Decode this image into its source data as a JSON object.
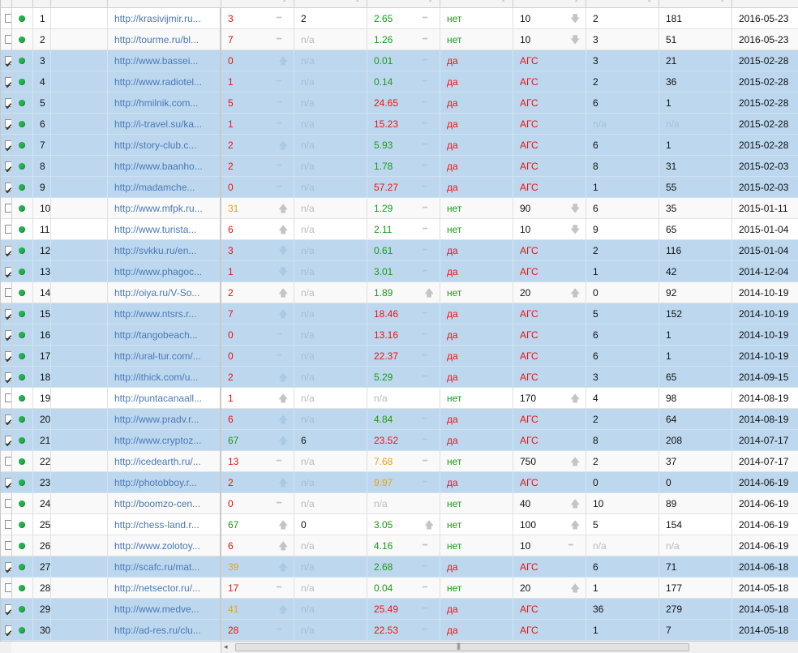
{
  "colors": {
    "selected_row": "#bdd8ee",
    "link": "#4a78b8",
    "red": "#ee1111",
    "green": "#1a9a1a",
    "orange": "#e8a218",
    "status_dot": "#22b14c"
  },
  "scrollbar": {
    "left_arrow": "◂",
    "grip": "|||"
  },
  "rows": [
    {
      "checked": false,
      "num": "1",
      "url": "http://krasivijmir.ru...",
      "c1": "3",
      "c1c": "red",
      "i1": "dash",
      "c2": "2",
      "c2c": "black",
      "c3": "2.65",
      "c3c": "green",
      "i3": "dash",
      "c4": "нет",
      "c4c": "green",
      "c5": "10",
      "c5c": "black",
      "i5": "down",
      "c6": "2",
      "c6c": "black",
      "c7": "181",
      "c7c": "black",
      "date": "2016-05-23"
    },
    {
      "checked": false,
      "num": "2",
      "url": "http://tourme.ru/bl...",
      "c1": "7",
      "c1c": "red",
      "i1": "dash",
      "c2": "n/a",
      "c2c": "muted",
      "c3": "1.26",
      "c3c": "green",
      "i3": "dash",
      "c4": "нет",
      "c4c": "green",
      "c5": "10",
      "c5c": "black",
      "i5": "down",
      "c6": "3",
      "c6c": "black",
      "c7": "51",
      "c7c": "black",
      "date": "2016-05-23"
    },
    {
      "checked": true,
      "num": "3",
      "url": "http://www.bassei...",
      "c1": "0",
      "c1c": "red",
      "i1": "up",
      "c2": "n/a",
      "c2c": "muted",
      "c3": "0.01",
      "c3c": "green",
      "i3": "dash",
      "c4": "да",
      "c4c": "red",
      "c5": "АГС",
      "c5c": "red",
      "i5": "",
      "c6": "3",
      "c6c": "black",
      "c7": "21",
      "c7c": "black",
      "date": "2015-02-28"
    },
    {
      "checked": true,
      "num": "4",
      "url": "http://www.radiotel...",
      "c1": "1",
      "c1c": "red",
      "i1": "dash",
      "c2": "n/a",
      "c2c": "muted",
      "c3": "0.14",
      "c3c": "green",
      "i3": "dash",
      "c4": "да",
      "c4c": "red",
      "c5": "АГС",
      "c5c": "red",
      "i5": "",
      "c6": "2",
      "c6c": "black",
      "c7": "36",
      "c7c": "black",
      "date": "2015-02-28"
    },
    {
      "checked": true,
      "num": "5",
      "url": "http://hmilnik.com...",
      "c1": "5",
      "c1c": "red",
      "i1": "dash",
      "c2": "n/a",
      "c2c": "muted",
      "c3": "24.65",
      "c3c": "red",
      "i3": "dash",
      "c4": "да",
      "c4c": "red",
      "c5": "АГС",
      "c5c": "red",
      "i5": "",
      "c6": "6",
      "c6c": "black",
      "c7": "1",
      "c7c": "black",
      "date": "2015-02-28"
    },
    {
      "checked": true,
      "num": "6",
      "url": "http://i-travel.su/ka...",
      "c1": "1",
      "c1c": "red",
      "i1": "dash",
      "c2": "n/a",
      "c2c": "muted",
      "c3": "15.23",
      "c3c": "red",
      "i3": "dash",
      "c4": "да",
      "c4c": "red",
      "c5": "АГС",
      "c5c": "red",
      "i5": "",
      "c6": "n/a",
      "c6c": "muted",
      "c7": "n/a",
      "c7c": "muted",
      "date": "2015-02-28"
    },
    {
      "checked": true,
      "num": "7",
      "url": "http://story-club.c...",
      "c1": "2",
      "c1c": "red",
      "i1": "up",
      "c2": "n/a",
      "c2c": "muted",
      "c3": "5.93",
      "c3c": "green",
      "i3": "dash",
      "c4": "да",
      "c4c": "red",
      "c5": "АГС",
      "c5c": "red",
      "i5": "",
      "c6": "6",
      "c6c": "black",
      "c7": "1",
      "c7c": "black",
      "date": "2015-02-28"
    },
    {
      "checked": true,
      "num": "8",
      "url": "http://www.baanho...",
      "c1": "2",
      "c1c": "red",
      "i1": "dash",
      "c2": "n/a",
      "c2c": "muted",
      "c3": "1.78",
      "c3c": "green",
      "i3": "dash",
      "c4": "да",
      "c4c": "red",
      "c5": "АГС",
      "c5c": "red",
      "i5": "",
      "c6": "8",
      "c6c": "black",
      "c7": "31",
      "c7c": "black",
      "date": "2015-02-03"
    },
    {
      "checked": true,
      "num": "9",
      "url": "http://madamche...",
      "c1": "0",
      "c1c": "red",
      "i1": "dash",
      "c2": "n/a",
      "c2c": "muted",
      "c3": "57.27",
      "c3c": "red",
      "i3": "dash",
      "c4": "да",
      "c4c": "red",
      "c5": "АГС",
      "c5c": "red",
      "i5": "",
      "c6": "1",
      "c6c": "black",
      "c7": "55",
      "c7c": "black",
      "date": "2015-02-03"
    },
    {
      "checked": false,
      "num": "10",
      "url": "http://www.mfpk.ru...",
      "c1": "31",
      "c1c": "orange",
      "i1": "up",
      "c2": "n/a",
      "c2c": "muted",
      "c3": "1.29",
      "c3c": "green",
      "i3": "dash",
      "c4": "нет",
      "c4c": "green",
      "c5": "90",
      "c5c": "black",
      "i5": "down",
      "c6": "6",
      "c6c": "black",
      "c7": "35",
      "c7c": "black",
      "date": "2015-01-11"
    },
    {
      "checked": false,
      "num": "11",
      "url": "http://www.turista...",
      "c1": "6",
      "c1c": "red",
      "i1": "up",
      "c2": "n/a",
      "c2c": "muted",
      "c3": "2.11",
      "c3c": "green",
      "i3": "dash",
      "c4": "нет",
      "c4c": "green",
      "c5": "10",
      "c5c": "black",
      "i5": "down",
      "c6": "9",
      "c6c": "black",
      "c7": "65",
      "c7c": "black",
      "date": "2015-01-04"
    },
    {
      "checked": true,
      "num": "12",
      "url": "http://svkku.ru/en...",
      "c1": "3",
      "c1c": "red",
      "i1": "down",
      "c2": "n/a",
      "c2c": "muted",
      "c3": "0.61",
      "c3c": "green",
      "i3": "dash",
      "c4": "да",
      "c4c": "red",
      "c5": "АГС",
      "c5c": "red",
      "i5": "",
      "c6": "2",
      "c6c": "black",
      "c7": "116",
      "c7c": "black",
      "date": "2015-01-04"
    },
    {
      "checked": true,
      "num": "13",
      "url": "http://www.phagoc...",
      "c1": "1",
      "c1c": "red",
      "i1": "down",
      "c2": "n/a",
      "c2c": "muted",
      "c3": "3.01",
      "c3c": "green",
      "i3": "dash",
      "c4": "да",
      "c4c": "red",
      "c5": "АГС",
      "c5c": "red",
      "i5": "",
      "c6": "1",
      "c6c": "black",
      "c7": "42",
      "c7c": "black",
      "date": "2014-12-04"
    },
    {
      "checked": false,
      "num": "14",
      "url": "http://oiya.ru/V-So...",
      "c1": "2",
      "c1c": "red",
      "i1": "up",
      "c2": "n/a",
      "c2c": "muted",
      "c3": "1.89",
      "c3c": "green",
      "i3": "up",
      "c4": "нет",
      "c4c": "green",
      "c5": "20",
      "c5c": "black",
      "i5": "up",
      "c6": "0",
      "c6c": "black",
      "c7": "92",
      "c7c": "black",
      "date": "2014-10-19"
    },
    {
      "checked": true,
      "num": "15",
      "url": "http://www.ntsrs.r...",
      "c1": "7",
      "c1c": "red",
      "i1": "up",
      "c2": "n/a",
      "c2c": "muted",
      "c3": "18.46",
      "c3c": "red",
      "i3": "dash",
      "c4": "да",
      "c4c": "red",
      "c5": "АГС",
      "c5c": "red",
      "i5": "",
      "c6": "5",
      "c6c": "black",
      "c7": "152",
      "c7c": "black",
      "date": "2014-10-19"
    },
    {
      "checked": true,
      "num": "16",
      "url": "http://tangobeach...",
      "c1": "0",
      "c1c": "red",
      "i1": "dash",
      "c2": "n/a",
      "c2c": "muted",
      "c3": "13.16",
      "c3c": "red",
      "i3": "dash",
      "c4": "да",
      "c4c": "red",
      "c5": "АГС",
      "c5c": "red",
      "i5": "",
      "c6": "6",
      "c6c": "black",
      "c7": "1",
      "c7c": "black",
      "date": "2014-10-19"
    },
    {
      "checked": true,
      "num": "17",
      "url": "http://ural-tur.com/...",
      "c1": "0",
      "c1c": "red",
      "i1": "dash",
      "c2": "n/a",
      "c2c": "muted",
      "c3": "22.37",
      "c3c": "red",
      "i3": "dash",
      "c4": "да",
      "c4c": "red",
      "c5": "АГС",
      "c5c": "red",
      "i5": "",
      "c6": "6",
      "c6c": "black",
      "c7": "1",
      "c7c": "black",
      "date": "2014-10-19"
    },
    {
      "checked": true,
      "num": "18",
      "url": "http://ithick.com/u...",
      "c1": "2",
      "c1c": "red",
      "i1": "up",
      "c2": "n/a",
      "c2c": "muted",
      "c3": "5.29",
      "c3c": "green",
      "i3": "dash",
      "c4": "да",
      "c4c": "red",
      "c5": "АГС",
      "c5c": "red",
      "i5": "",
      "c6": "3",
      "c6c": "black",
      "c7": "65",
      "c7c": "black",
      "date": "2014-09-15"
    },
    {
      "checked": false,
      "num": "19",
      "url": "http://puntacanaall...",
      "c1": "1",
      "c1c": "red",
      "i1": "up",
      "c2": "n/a",
      "c2c": "muted",
      "c3": "n/a",
      "c3c": "muted",
      "i3": "",
      "c4": "нет",
      "c4c": "green",
      "c5": "170",
      "c5c": "black",
      "i5": "up",
      "c6": "4",
      "c6c": "black",
      "c7": "98",
      "c7c": "black",
      "date": "2014-08-19"
    },
    {
      "checked": true,
      "num": "20",
      "url": "http://www.pradv.r...",
      "c1": "6",
      "c1c": "red",
      "i1": "up",
      "c2": "n/a",
      "c2c": "muted",
      "c3": "4.84",
      "c3c": "green",
      "i3": "dash",
      "c4": "да",
      "c4c": "red",
      "c5": "АГС",
      "c5c": "red",
      "i5": "",
      "c6": "2",
      "c6c": "black",
      "c7": "64",
      "c7c": "black",
      "date": "2014-08-19"
    },
    {
      "checked": true,
      "num": "21",
      "url": "http://www.cryptoz...",
      "c1": "67",
      "c1c": "green",
      "i1": "up",
      "c2": "6",
      "c2c": "black",
      "c3": "23.52",
      "c3c": "red",
      "i3": "dash",
      "c4": "да",
      "c4c": "red",
      "c5": "АГС",
      "c5c": "red",
      "i5": "",
      "c6": "8",
      "c6c": "black",
      "c7": "208",
      "c7c": "black",
      "date": "2014-07-17"
    },
    {
      "checked": false,
      "num": "22",
      "url": "http://icedearth.ru/...",
      "c1": "13",
      "c1c": "red",
      "i1": "dash",
      "c2": "n/a",
      "c2c": "muted",
      "c3": "7.68",
      "c3c": "orange",
      "i3": "dash",
      "c4": "нет",
      "c4c": "green",
      "c5": "750",
      "c5c": "black",
      "i5": "up",
      "c6": "2",
      "c6c": "black",
      "c7": "37",
      "c7c": "black",
      "date": "2014-07-17"
    },
    {
      "checked": true,
      "num": "23",
      "url": "http://photobboy.r...",
      "c1": "2",
      "c1c": "red",
      "i1": "up",
      "c2": "n/a",
      "c2c": "muted",
      "c3": "9.97",
      "c3c": "orange",
      "i3": "dash",
      "c4": "да",
      "c4c": "red",
      "c5": "АГС",
      "c5c": "red",
      "i5": "",
      "c6": "0",
      "c6c": "black",
      "c7": "0",
      "c7c": "black",
      "date": "2014-06-19"
    },
    {
      "checked": false,
      "num": "24",
      "url": "http://boomzo-cen...",
      "c1": "0",
      "c1c": "red",
      "i1": "dash",
      "c2": "n/a",
      "c2c": "muted",
      "c3": "n/a",
      "c3c": "muted",
      "i3": "",
      "c4": "нет",
      "c4c": "green",
      "c5": "40",
      "c5c": "black",
      "i5": "up",
      "c6": "10",
      "c6c": "black",
      "c7": "89",
      "c7c": "black",
      "date": "2014-06-19"
    },
    {
      "checked": false,
      "num": "25",
      "url": "http://chess-land.r...",
      "c1": "67",
      "c1c": "green",
      "i1": "up",
      "c2": "0",
      "c2c": "black",
      "c3": "3.05",
      "c3c": "green",
      "i3": "up",
      "c4": "нет",
      "c4c": "green",
      "c5": "100",
      "c5c": "black",
      "i5": "up",
      "c6": "5",
      "c6c": "black",
      "c7": "154",
      "c7c": "black",
      "date": "2014-06-19"
    },
    {
      "checked": false,
      "num": "26",
      "url": "http://www.zolotoy...",
      "c1": "6",
      "c1c": "red",
      "i1": "up",
      "c2": "n/a",
      "c2c": "muted",
      "c3": "4.16",
      "c3c": "green",
      "i3": "dash",
      "c4": "нет",
      "c4c": "green",
      "c5": "10",
      "c5c": "black",
      "i5": "dash",
      "c6": "n/a",
      "c6c": "muted",
      "c7": "n/a",
      "c7c": "muted",
      "date": "2014-06-19"
    },
    {
      "checked": true,
      "num": "27",
      "url": "http://scafc.ru/mat...",
      "c1": "39",
      "c1c": "orange",
      "i1": "up",
      "c2": "n/a",
      "c2c": "muted",
      "c3": "2.68",
      "c3c": "green",
      "i3": "dash",
      "c4": "да",
      "c4c": "red",
      "c5": "АГС",
      "c5c": "red",
      "i5": "",
      "c6": "6",
      "c6c": "black",
      "c7": "71",
      "c7c": "black",
      "date": "2014-06-18"
    },
    {
      "checked": false,
      "num": "28",
      "url": "http://netsector.ru/...",
      "c1": "17",
      "c1c": "red",
      "i1": "dash",
      "c2": "n/a",
      "c2c": "muted",
      "c3": "0.04",
      "c3c": "green",
      "i3": "dash",
      "c4": "нет",
      "c4c": "green",
      "c5": "20",
      "c5c": "black",
      "i5": "up",
      "c6": "1",
      "c6c": "black",
      "c7": "177",
      "c7c": "black",
      "date": "2014-05-18"
    },
    {
      "checked": true,
      "num": "29",
      "url": "http://www.medve...",
      "c1": "41",
      "c1c": "orange",
      "i1": "up",
      "c2": "n/a",
      "c2c": "muted",
      "c3": "25.49",
      "c3c": "red",
      "i3": "dash",
      "c4": "да",
      "c4c": "red",
      "c5": "АГС",
      "c5c": "red",
      "i5": "",
      "c6": "36",
      "c6c": "black",
      "c7": "279",
      "c7c": "black",
      "date": "2014-05-18"
    },
    {
      "checked": true,
      "num": "30",
      "url": "http://ad-res.ru/clu...",
      "c1": "28",
      "c1c": "red",
      "i1": "dash",
      "c2": "n/a",
      "c2c": "muted",
      "c3": "22.53",
      "c3c": "red",
      "i3": "dash",
      "c4": "да",
      "c4c": "red",
      "c5": "АГС",
      "c5c": "red",
      "i5": "",
      "c6": "1",
      "c6c": "black",
      "c7": "7",
      "c7c": "black",
      "date": "2014-05-18"
    }
  ]
}
